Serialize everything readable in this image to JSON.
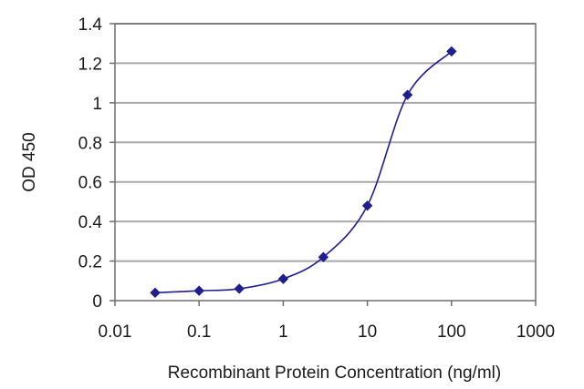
{
  "chart_data": {
    "type": "scatter",
    "title": "",
    "xlabel": "Recombinant Protein Concentration (ng/ml)",
    "ylabel": "OD 450",
    "x_scale": "log",
    "xlim": [
      0.01,
      1000
    ],
    "ylim": [
      0,
      1.4
    ],
    "x_ticks": [
      "0.01",
      "0.1",
      "1",
      "10",
      "100",
      "1000"
    ],
    "y_ticks": [
      "0",
      "0.2",
      "0.4",
      "0.6",
      "0.8",
      "1",
      "1.2",
      "1.4"
    ],
    "grid": "horizontal",
    "fit_curve": true,
    "colors": {
      "series": "#1f1f8f",
      "grid": "#a9a9a9",
      "frame": "#6e6e6e"
    },
    "series": [
      {
        "x": [
          0.03,
          0.1,
          0.3,
          1,
          3,
          10,
          30,
          100
        ],
        "y": [
          0.04,
          0.05,
          0.06,
          0.11,
          0.22,
          0.48,
          1.04,
          1.26
        ]
      }
    ]
  }
}
